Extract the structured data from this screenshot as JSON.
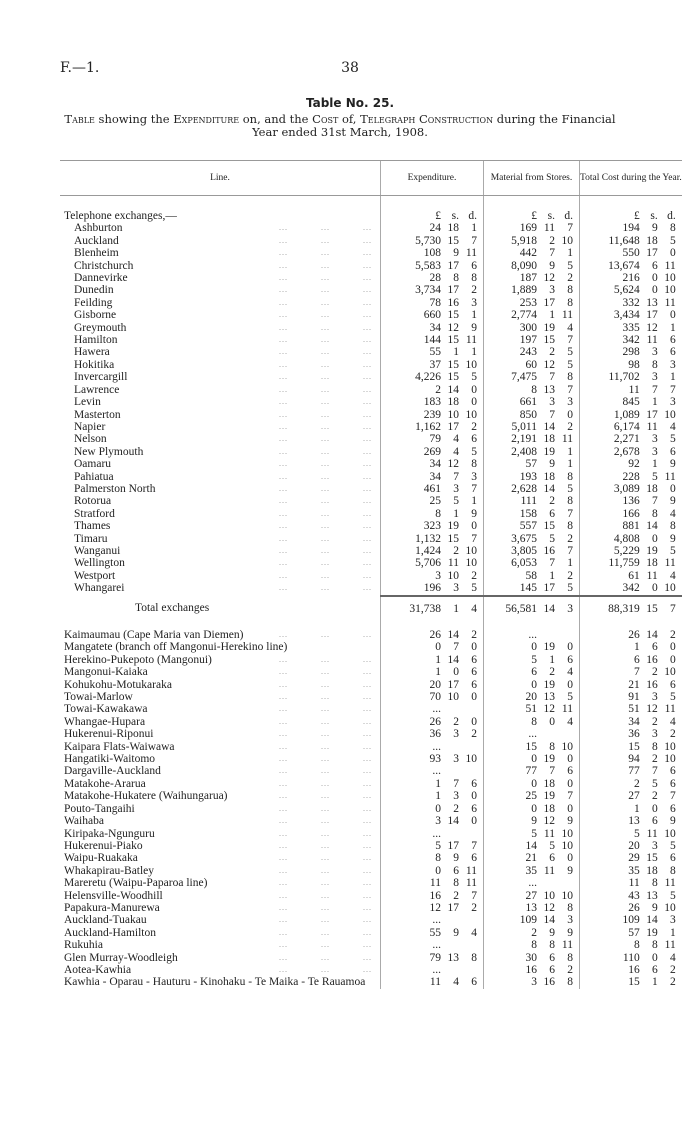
{
  "header": {
    "ref": "F.—1.",
    "page": "38"
  },
  "table_title": "Table No. 25.",
  "caption": {
    "p1": "Table",
    "p2": " showing the ",
    "p3": "Expenditure",
    "p4": " on, and the ",
    "p5": "Cost",
    "p6": " of, ",
    "p7": "Telegraph Construction",
    "p8": " during the Financial Year ended 31st March, 1908."
  },
  "columns": {
    "line": "Line.",
    "expenditure": "Expenditure.",
    "material": "Material from Stores.",
    "total": "Total Cost during the Year."
  },
  "units": {
    "l": "£",
    "s": "s.",
    "d": "d."
  },
  "section_label": "Telephone exchanges,—",
  "exchanges": [
    [
      "Ashburton",
      [
        "24",
        "18",
        "1"
      ],
      [
        "169",
        "11",
        "7"
      ],
      [
        "194",
        "9",
        "8"
      ]
    ],
    [
      "Auckland",
      [
        "5,730",
        "15",
        "7"
      ],
      [
        "5,918",
        "2",
        "10"
      ],
      [
        "11,648",
        "18",
        "5"
      ]
    ],
    [
      "Blenheim",
      [
        "108",
        "9",
        "11"
      ],
      [
        "442",
        "7",
        "1"
      ],
      [
        "550",
        "17",
        "0"
      ]
    ],
    [
      "Christchurch",
      [
        "5,583",
        "17",
        "6"
      ],
      [
        "8,090",
        "9",
        "5"
      ],
      [
        "13,674",
        "6",
        "11"
      ]
    ],
    [
      "Dannevirke",
      [
        "28",
        "8",
        "8"
      ],
      [
        "187",
        "12",
        "2"
      ],
      [
        "216",
        "0",
        "10"
      ]
    ],
    [
      "Dunedin",
      [
        "3,734",
        "17",
        "2"
      ],
      [
        "1,889",
        "3",
        "8"
      ],
      [
        "5,624",
        "0",
        "10"
      ]
    ],
    [
      "Feilding",
      [
        "78",
        "16",
        "3"
      ],
      [
        "253",
        "17",
        "8"
      ],
      [
        "332",
        "13",
        "11"
      ]
    ],
    [
      "Gisborne",
      [
        "660",
        "15",
        "1"
      ],
      [
        "2,774",
        "1",
        "11"
      ],
      [
        "3,434",
        "17",
        "0"
      ]
    ],
    [
      "Greymouth",
      [
        "34",
        "12",
        "9"
      ],
      [
        "300",
        "19",
        "4"
      ],
      [
        "335",
        "12",
        "1"
      ]
    ],
    [
      "Hamilton",
      [
        "144",
        "15",
        "11"
      ],
      [
        "197",
        "15",
        "7"
      ],
      [
        "342",
        "11",
        "6"
      ]
    ],
    [
      "Hawera",
      [
        "55",
        "1",
        "1"
      ],
      [
        "243",
        "2",
        "5"
      ],
      [
        "298",
        "3",
        "6"
      ]
    ],
    [
      "Hokitika",
      [
        "37",
        "15",
        "10"
      ],
      [
        "60",
        "12",
        "5"
      ],
      [
        "98",
        "8",
        "3"
      ]
    ],
    [
      "Invercargill",
      [
        "4,226",
        "15",
        "5"
      ],
      [
        "7,475",
        "7",
        "8"
      ],
      [
        "11,702",
        "3",
        "1"
      ]
    ],
    [
      "Lawrence",
      [
        "2",
        "14",
        "0"
      ],
      [
        "8",
        "13",
        "7"
      ],
      [
        "11",
        "7",
        "7"
      ]
    ],
    [
      "Levin",
      [
        "183",
        "18",
        "0"
      ],
      [
        "661",
        "3",
        "3"
      ],
      [
        "845",
        "1",
        "3"
      ]
    ],
    [
      "Masterton",
      [
        "239",
        "10",
        "10"
      ],
      [
        "850",
        "7",
        "0"
      ],
      [
        "1,089",
        "17",
        "10"
      ]
    ],
    [
      "Napier",
      [
        "1,162",
        "17",
        "2"
      ],
      [
        "5,011",
        "14",
        "2"
      ],
      [
        "6,174",
        "11",
        "4"
      ]
    ],
    [
      "Nelson",
      [
        "79",
        "4",
        "6"
      ],
      [
        "2,191",
        "18",
        "11"
      ],
      [
        "2,271",
        "3",
        "5"
      ]
    ],
    [
      "New Plymouth",
      [
        "269",
        "4",
        "5"
      ],
      [
        "2,408",
        "19",
        "1"
      ],
      [
        "2,678",
        "3",
        "6"
      ]
    ],
    [
      "Oamaru",
      [
        "34",
        "12",
        "8"
      ],
      [
        "57",
        "9",
        "1"
      ],
      [
        "92",
        "1",
        "9"
      ]
    ],
    [
      "Pahiatua",
      [
        "34",
        "7",
        "3"
      ],
      [
        "193",
        "18",
        "8"
      ],
      [
        "228",
        "5",
        "11"
      ]
    ],
    [
      "Palmerston North",
      [
        "461",
        "3",
        "7"
      ],
      [
        "2,628",
        "14",
        "5"
      ],
      [
        "3,089",
        "18",
        "0"
      ]
    ],
    [
      "Rotorua",
      [
        "25",
        "5",
        "1"
      ],
      [
        "111",
        "2",
        "8"
      ],
      [
        "136",
        "7",
        "9"
      ]
    ],
    [
      "Stratford",
      [
        "8",
        "1",
        "9"
      ],
      [
        "158",
        "6",
        "7"
      ],
      [
        "166",
        "8",
        "4"
      ]
    ],
    [
      "Thames",
      [
        "323",
        "19",
        "0"
      ],
      [
        "557",
        "15",
        "8"
      ],
      [
        "881",
        "14",
        "8"
      ]
    ],
    [
      "Timaru",
      [
        "1,132",
        "15",
        "7"
      ],
      [
        "3,675",
        "5",
        "2"
      ],
      [
        "4,808",
        "0",
        "9"
      ]
    ],
    [
      "Wanganui",
      [
        "1,424",
        "2",
        "10"
      ],
      [
        "3,805",
        "16",
        "7"
      ],
      [
        "5,229",
        "19",
        "5"
      ]
    ],
    [
      "Wellington",
      [
        "5,706",
        "11",
        "10"
      ],
      [
        "6,053",
        "7",
        "1"
      ],
      [
        "11,759",
        "18",
        "11"
      ]
    ],
    [
      "Westport",
      [
        "3",
        "10",
        "2"
      ],
      [
        "58",
        "1",
        "2"
      ],
      [
        "61",
        "11",
        "4"
      ]
    ],
    [
      "Whangarei",
      [
        "196",
        "3",
        "5"
      ],
      [
        "145",
        "17",
        "5"
      ],
      [
        "342",
        "0",
        "10"
      ]
    ]
  ],
  "total_exchanges": [
    "Total exchanges",
    [
      "31,738",
      "1",
      "4"
    ],
    [
      "56,581",
      "14",
      "3"
    ],
    [
      "88,319",
      "15",
      "7"
    ]
  ],
  "lines": [
    [
      "Kaimaumau (Cape Maria van Diemen)",
      [
        "26",
        "14",
        "2"
      ],
      [
        "...",
        "",
        ""
      ],
      [
        "26",
        "14",
        "2"
      ]
    ],
    [
      "Mangatete (branch off Mangonui-Herekino line)",
      [
        "0",
        "7",
        "0"
      ],
      [
        "0",
        "19",
        "0"
      ],
      [
        "1",
        "6",
        "0"
      ]
    ],
    [
      "Herekino-Pukepoto (Mangonui)",
      [
        "1",
        "14",
        "6"
      ],
      [
        "5",
        "1",
        "6"
      ],
      [
        "6",
        "16",
        "0"
      ]
    ],
    [
      "Mangonui-Kaiaka",
      [
        "1",
        "0",
        "6"
      ],
      [
        "6",
        "2",
        "4"
      ],
      [
        "7",
        "2",
        "10"
      ]
    ],
    [
      "Kohukohu-Motukaraka",
      [
        "20",
        "17",
        "6"
      ],
      [
        "0",
        "19",
        "0"
      ],
      [
        "21",
        "16",
        "6"
      ]
    ],
    [
      "Towai-Marlow",
      [
        "70",
        "10",
        "0"
      ],
      [
        "20",
        "13",
        "5"
      ],
      [
        "91",
        "3",
        "5"
      ]
    ],
    [
      "Towai-Kawakawa",
      [
        "...",
        "",
        ""
      ],
      [
        "51",
        "12",
        "11"
      ],
      [
        "51",
        "12",
        "11"
      ]
    ],
    [
      "Whangae-Hupara",
      [
        "26",
        "2",
        "0"
      ],
      [
        "8",
        "0",
        "4"
      ],
      [
        "34",
        "2",
        "4"
      ]
    ],
    [
      "Hukerenui-Riponui",
      [
        "36",
        "3",
        "2"
      ],
      [
        "...",
        "",
        ""
      ],
      [
        "36",
        "3",
        "2"
      ]
    ],
    [
      "Kaipara Flats-Waiwawa",
      [
        "...",
        "",
        ""
      ],
      [
        "15",
        "8",
        "10"
      ],
      [
        "15",
        "8",
        "10"
      ]
    ],
    [
      "Hangatiki-Waitomo",
      [
        "93",
        "3",
        "10"
      ],
      [
        "0",
        "19",
        "0"
      ],
      [
        "94",
        "2",
        "10"
      ]
    ],
    [
      "Dargaville-Auckland",
      [
        "...",
        "",
        ""
      ],
      [
        "77",
        "7",
        "6"
      ],
      [
        "77",
        "7",
        "6"
      ]
    ],
    [
      "Matakohe-Ararua",
      [
        "1",
        "7",
        "6"
      ],
      [
        "0",
        "18",
        "0"
      ],
      [
        "2",
        "5",
        "6"
      ]
    ],
    [
      "Matakohe-Hukatere (Waihungarua)",
      [
        "1",
        "3",
        "0"
      ],
      [
        "25",
        "19",
        "7"
      ],
      [
        "27",
        "2",
        "7"
      ]
    ],
    [
      "Pouto-Tangaihi",
      [
        "0",
        "2",
        "6"
      ],
      [
        "0",
        "18",
        "0"
      ],
      [
        "1",
        "0",
        "6"
      ]
    ],
    [
      "Waihaba",
      [
        "3",
        "14",
        "0"
      ],
      [
        "9",
        "12",
        "9"
      ],
      [
        "13",
        "6",
        "9"
      ]
    ],
    [
      "Kiripaka-Ngunguru",
      [
        "...",
        "",
        ""
      ],
      [
        "5",
        "11",
        "10"
      ],
      [
        "5",
        "11",
        "10"
      ]
    ],
    [
      "Hukerenui-Piako",
      [
        "5",
        "17",
        "7"
      ],
      [
        "14",
        "5",
        "10"
      ],
      [
        "20",
        "3",
        "5"
      ]
    ],
    [
      "Waipu-Ruakaka",
      [
        "8",
        "9",
        "6"
      ],
      [
        "21",
        "6",
        "0"
      ],
      [
        "29",
        "15",
        "6"
      ]
    ],
    [
      "Whakapirau-Batley",
      [
        "0",
        "6",
        "11"
      ],
      [
        "35",
        "11",
        "9"
      ],
      [
        "35",
        "18",
        "8"
      ]
    ],
    [
      "Mareretu (Waipu-Paparoa line)",
      [
        "11",
        "8",
        "11"
      ],
      [
        "...",
        "",
        ""
      ],
      [
        "11",
        "8",
        "11"
      ]
    ],
    [
      "Helensville-Woodhill",
      [
        "16",
        "2",
        "7"
      ],
      [
        "27",
        "10",
        "10"
      ],
      [
        "43",
        "13",
        "5"
      ]
    ],
    [
      "Papakura-Manurewa",
      [
        "12",
        "17",
        "2"
      ],
      [
        "13",
        "12",
        "8"
      ],
      [
        "26",
        "9",
        "10"
      ]
    ],
    [
      "Auckland-Tuakau",
      [
        "...",
        "",
        ""
      ],
      [
        "109",
        "14",
        "3"
      ],
      [
        "109",
        "14",
        "3"
      ]
    ],
    [
      "Auckland-Hamilton",
      [
        "55",
        "9",
        "4"
      ],
      [
        "2",
        "9",
        "9"
      ],
      [
        "57",
        "19",
        "1"
      ]
    ],
    [
      "Rukuhia",
      [
        "...",
        "",
        ""
      ],
      [
        "8",
        "8",
        "11"
      ],
      [
        "8",
        "8",
        "11"
      ]
    ],
    [
      "Glen Murray-Woodleigh",
      [
        "79",
        "13",
        "8"
      ],
      [
        "30",
        "6",
        "8"
      ],
      [
        "110",
        "0",
        "4"
      ]
    ],
    [
      "Aotea-Kawhia",
      [
        "...",
        "",
        ""
      ],
      [
        "16",
        "6",
        "2"
      ],
      [
        "16",
        "6",
        "2"
      ]
    ],
    [
      "Kawhia - Oparau - Hauturu - Kinohaku - Te Maika - Te Rauamoa",
      [
        "11",
        "4",
        "6"
      ],
      [
        "3",
        "16",
        "8"
      ],
      [
        "15",
        "1",
        "2"
      ]
    ]
  ]
}
